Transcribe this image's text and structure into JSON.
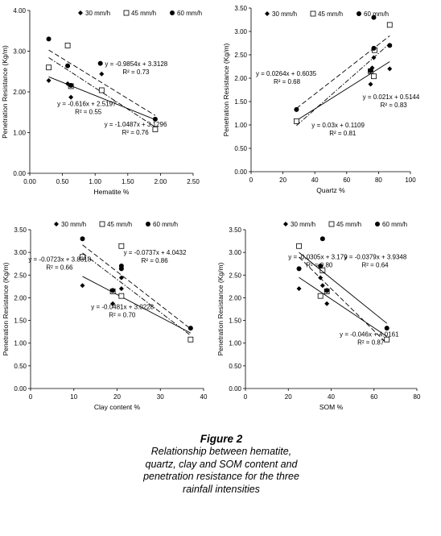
{
  "legend_labels": {
    "s30": "30 mm/h",
    "s45": "45 mm/h",
    "s60": "60 mm/h"
  },
  "caption": {
    "title": "Figure 2",
    "text": "Relationship between hematite, quartz, clay and SOM content and penetration resistance for the three rainfall intensities"
  },
  "chart_data": [
    {
      "type": "scatter",
      "xlabel": "Hematite %",
      "ylabel": "Penetration Resistance (Kg/m)",
      "xlim": [
        0,
        2.5
      ],
      "ylim": [
        0,
        4
      ],
      "xticks": [
        "0.00",
        "0.50",
        "1.00",
        "1.50",
        "2.00",
        "2.50"
      ],
      "yticks": [
        "0.00",
        "1.00",
        "2.00",
        "3.00",
        "4.00"
      ],
      "legend": {
        "labels": [
          "30 mm/h",
          "45 mm/h",
          "60 mm/h"
        ]
      },
      "series": [
        {
          "name": "30 mm/h",
          "marker": "diamond",
          "line": "solid",
          "points": [
            [
              0.29,
              2.28
            ],
            [
              0.58,
              2.2
            ],
            [
              0.63,
              1.87
            ],
            [
              1.1,
              2.44
            ],
            [
              1.92,
              1.08
            ]
          ]
        },
        {
          "name": "45 mm/h",
          "marker": "square",
          "line": "dashdot",
          "points": [
            [
              0.29,
              2.6
            ],
            [
              0.58,
              3.14
            ],
            [
              0.63,
              2.14
            ],
            [
              1.1,
              2.04
            ],
            [
              1.92,
              1.08
            ]
          ]
        },
        {
          "name": "60 mm/h",
          "marker": "circle",
          "line": "dashed",
          "points": [
            [
              0.29,
              3.3
            ],
            [
              0.58,
              2.64
            ],
            [
              0.63,
              2.16
            ],
            [
              1.08,
              2.7
            ],
            [
              1.92,
              1.33
            ]
          ]
        }
      ],
      "equations": [
        {
          "eq": "y = -0.9854x + 3.3128",
          "r2": "R² = 0.73",
          "at": [
            1.15,
            2.63
          ]
        },
        {
          "eq": "y = -0.616x + 2.5197",
          "r2": "R² = 0.55",
          "at": [
            0.42,
            1.65
          ]
        },
        {
          "eq": "y = -1.0487x + 3.1296",
          "r2": "R² = 0.76",
          "at": [
            1.14,
            1.15
          ]
        }
      ]
    },
    {
      "type": "scatter",
      "xlabel": "Quartz %",
      "ylabel": "Penetration Resistance (Kg/m)",
      "xlim": [
        0,
        100
      ],
      "ylim": [
        0,
        3.5
      ],
      "xticks": [
        "0",
        "20",
        "40",
        "60",
        "80",
        "100"
      ],
      "yticks": [
        "0.00",
        "0.50",
        "1.00",
        "1.50",
        "2.00",
        "2.50",
        "3.00",
        "3.50"
      ],
      "legend": {
        "labels": [
          "30 mm/h",
          "45 mm/h",
          "60 mm/h"
        ]
      },
      "series": [
        {
          "name": "30 mm/h",
          "marker": "diamond",
          "line": "solid",
          "points": [
            [
              28.5,
              1.07
            ],
            [
              75,
              1.87
            ],
            [
              76,
              2.22
            ],
            [
              77,
              2.44
            ],
            [
              87,
              2.2
            ]
          ]
        },
        {
          "name": "45 mm/h",
          "marker": "square",
          "line": "dashdot",
          "points": [
            [
              28.5,
              1.08
            ],
            [
              75,
              2.15
            ],
            [
              77,
              2.04
            ],
            [
              77.5,
              2.6
            ],
            [
              87,
              3.14
            ]
          ]
        },
        {
          "name": "60 mm/h",
          "marker": "circle",
          "line": "dashed",
          "points": [
            [
              28.5,
              1.33
            ],
            [
              75,
              2.16
            ],
            [
              77,
              2.64
            ],
            [
              77,
              3.3
            ],
            [
              87,
              2.7
            ]
          ]
        }
      ],
      "equations": [
        {
          "eq": "y = 0.0264x + 0.6035",
          "r2": "R² = 0.68",
          "at": [
            3,
            2.05
          ]
        },
        {
          "eq": "y = 0.021x + 0.5144",
          "r2": "R² = 0.83",
          "at": [
            70,
            1.55
          ]
        },
        {
          "eq": "y = 0.03x + 0.1109",
          "r2": "R² = 0.81",
          "at": [
            38,
            0.95
          ]
        }
      ]
    },
    {
      "type": "scatter",
      "xlabel": "Clay content %",
      "ylabel": "Penetration Resistance (Kg/m)",
      "xlim": [
        0,
        40
      ],
      "ylim": [
        0,
        3.5
      ],
      "xticks": [
        "0",
        "10",
        "20",
        "30",
        "40"
      ],
      "yticks": [
        "0.00",
        "0.50",
        "1.00",
        "1.50",
        "2.00",
        "2.50",
        "3.00",
        "3.50"
      ],
      "legend": {
        "labels": [
          "30 mm/h",
          "45 mm/h",
          "60 mm/h"
        ]
      },
      "series": [
        {
          "name": "30 mm/h",
          "marker": "diamond",
          "line": "solid",
          "points": [
            [
              12,
              2.27
            ],
            [
              19,
              1.87
            ],
            [
              21,
              2.2
            ],
            [
              21,
              2.44
            ],
            [
              37,
              1.08
            ]
          ]
        },
        {
          "name": "45 mm/h",
          "marker": "square",
          "line": "dashdot",
          "points": [
            [
              12,
              2.9
            ],
            [
              19,
              2.14
            ],
            [
              21,
              2.04
            ],
            [
              21,
              3.14
            ],
            [
              37,
              1.08
            ]
          ]
        },
        {
          "name": "60 mm/h",
          "marker": "circle",
          "line": "dashed",
          "points": [
            [
              12,
              3.3
            ],
            [
              19,
              2.16
            ],
            [
              21,
              2.64
            ],
            [
              21,
              2.7
            ],
            [
              37,
              1.33
            ]
          ]
        }
      ],
      "equations": [
        {
          "eq": "y = -0.0737x + 4.0432",
          "r2": "R² = 0.86",
          "at": [
            21.5,
            2.95
          ]
        },
        {
          "eq": "y = -0.0723x + 3.8318",
          "r2": "R² = 0.66",
          "at": [
            -0.5,
            2.8
          ]
        },
        {
          "eq": "y = -0.0481x + 3.0228",
          "r2": "R² = 0.70",
          "at": [
            14,
            1.75
          ]
        }
      ]
    },
    {
      "type": "scatter",
      "xlabel": "SOM %",
      "ylabel": "Penetration Resistance (Kg/m)",
      "xlim": [
        0,
        80
      ],
      "ylim": [
        0,
        3.5
      ],
      "xticks": [
        "0",
        "20",
        "40",
        "60",
        "80"
      ],
      "yticks": [
        "0.00",
        "0.50",
        "1.00",
        "1.50",
        "2.00",
        "2.50",
        "3.00",
        "3.50"
      ],
      "legend": {
        "labels": [
          "30 mm/h",
          "45 mm/h",
          "60 mm/h"
        ]
      },
      "series": [
        {
          "name": "30 mm/h",
          "marker": "diamond",
          "line": "solid",
          "points": [
            [
              25,
              2.2
            ],
            [
              35,
              2.44
            ],
            [
              36,
              2.27
            ],
            [
              38,
              1.87
            ],
            [
              66,
              1.08
            ]
          ]
        },
        {
          "name": "45 mm/h",
          "marker": "square",
          "line": "dashed",
          "points": [
            [
              25,
              3.14
            ],
            [
              35,
              2.04
            ],
            [
              36,
              2.6
            ],
            [
              38,
              2.14
            ],
            [
              66,
              1.08
            ]
          ]
        },
        {
          "name": "60 mm/h",
          "marker": "circle",
          "line": "solid",
          "points": [
            [
              25,
              2.64
            ],
            [
              35,
              2.7
            ],
            [
              36,
              3.3
            ],
            [
              38,
              2.16
            ],
            [
              66,
              1.33
            ]
          ]
        }
      ],
      "equations": [
        {
          "eq": "y = -0.0305x + 3.179",
          "r2": "R² = 0.80",
          "at": [
            20,
            2.85
          ]
        },
        {
          "eq": "y = -0.0379x + 3.9348",
          "r2": "R² = 0.64",
          "at": [
            46,
            2.85
          ]
        },
        {
          "eq": "y = -0.046x + 4.0161",
          "r2": "R² = 0.87",
          "at": [
            44,
            1.15
          ]
        }
      ]
    }
  ]
}
